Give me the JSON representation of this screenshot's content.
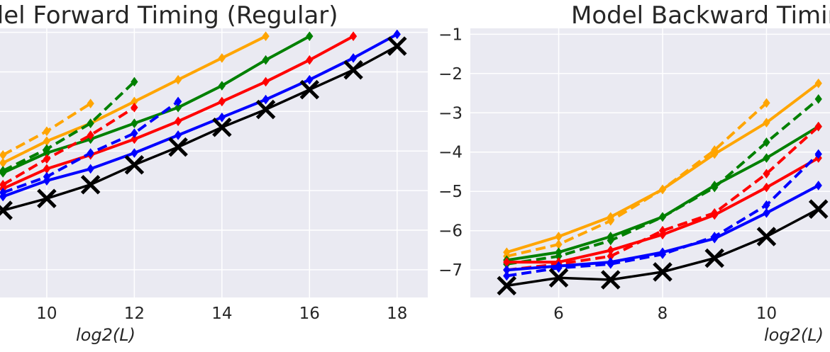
{
  "chart_data": [
    {
      "type": "line",
      "title": "Model Forward Timing (Regular)",
      "xlabel": "log2(L)",
      "xticks": [
        10,
        12,
        14,
        16,
        18
      ],
      "xlim": [
        8.9,
        18.7
      ],
      "ylim": [
        -7.7,
        -0.9
      ],
      "grid": true,
      "series": [
        {
          "color": "#ffa500",
          "style": "solid",
          "marker": "diamond",
          "x": [
            9,
            10,
            11,
            12,
            13,
            14,
            15
          ],
          "y": [
            -4.3,
            -3.75,
            -3.3,
            -2.75,
            -2.2,
            -1.65,
            -1.1
          ]
        },
        {
          "color": "#ffa500",
          "style": "dashed",
          "marker": "diamond",
          "x": [
            9,
            10,
            11
          ],
          "y": [
            -4.1,
            -3.5,
            -2.8
          ]
        },
        {
          "color": "#008000",
          "style": "solid",
          "marker": "diamond",
          "x": [
            9,
            10,
            11,
            12,
            13,
            14,
            15,
            16
          ],
          "y": [
            -4.55,
            -4.05,
            -3.7,
            -3.3,
            -2.9,
            -2.35,
            -1.7,
            -1.1
          ]
        },
        {
          "color": "#008000",
          "style": "dashed",
          "marker": "diamond",
          "x": [
            9,
            10,
            11,
            12
          ],
          "y": [
            -4.5,
            -3.95,
            -3.3,
            -2.25
          ]
        },
        {
          "color": "#ff0000",
          "style": "solid",
          "marker": "diamond",
          "x": [
            9,
            10,
            11,
            12,
            13,
            14,
            15,
            16,
            17
          ],
          "y": [
            -4.95,
            -4.45,
            -4.1,
            -3.7,
            -3.25,
            -2.75,
            -2.25,
            -1.7,
            -1.1
          ]
        },
        {
          "color": "#ff0000",
          "style": "dashed",
          "marker": "diamond",
          "x": [
            9,
            10,
            11,
            12
          ],
          "y": [
            -4.85,
            -4.2,
            -3.6,
            -2.9
          ]
        },
        {
          "color": "#0000ff",
          "style": "solid",
          "marker": "diamond",
          "x": [
            9,
            10,
            11,
            12,
            13,
            14,
            15,
            16,
            17,
            18
          ],
          "y": [
            -5.15,
            -4.75,
            -4.45,
            -4.05,
            -3.6,
            -3.15,
            -2.7,
            -2.2,
            -1.65,
            -1.05
          ]
        },
        {
          "color": "#0000ff",
          "style": "dashed",
          "marker": "diamond",
          "x": [
            9,
            10,
            11,
            12,
            13
          ],
          "y": [
            -5.05,
            -4.65,
            -4.05,
            -3.55,
            -2.75
          ]
        },
        {
          "color": "#000000",
          "style": "solid",
          "marker": "x",
          "x": [
            9,
            10,
            11,
            12,
            13,
            14,
            15,
            16,
            17,
            18
          ],
          "y": [
            -5.5,
            -5.2,
            -4.85,
            -4.35,
            -3.9,
            -3.4,
            -2.95,
            -2.45,
            -1.95,
            -1.35
          ]
        }
      ]
    },
    {
      "type": "line",
      "title": "Model Backward Timing",
      "xlabel": "log2(L)",
      "xticks": [
        6,
        8,
        10
      ],
      "yticks": [
        -1,
        -2,
        -3,
        -4,
        -5,
        -6,
        -7
      ],
      "xlim": [
        4.3,
        11.4
      ],
      "ylim": [
        -7.7,
        -0.85
      ],
      "grid": true,
      "series": [
        {
          "color": "#ffa500",
          "style": "solid",
          "marker": "diamond",
          "x": [
            5,
            6,
            7,
            8,
            9,
            10,
            11
          ],
          "y": [
            -6.55,
            -6.15,
            -5.65,
            -4.95,
            -4.05,
            -3.25,
            -2.25
          ]
        },
        {
          "color": "#ffa500",
          "style": "dashed",
          "marker": "diamond",
          "x": [
            5,
            6,
            7,
            8,
            9,
            10
          ],
          "y": [
            -6.65,
            -6.35,
            -5.75,
            -4.95,
            -3.95,
            -2.75
          ]
        },
        {
          "color": "#008000",
          "style": "solid",
          "marker": "diamond",
          "x": [
            5,
            6,
            7,
            8,
            9,
            10,
            11
          ],
          "y": [
            -6.75,
            -6.55,
            -6.15,
            -5.65,
            -4.85,
            -4.15,
            -3.35
          ]
        },
        {
          "color": "#008000",
          "style": "dashed",
          "marker": "diamond",
          "x": [
            5,
            6,
            7,
            8,
            9,
            10,
            11
          ],
          "y": [
            -6.85,
            -6.65,
            -6.25,
            -5.65,
            -4.9,
            -3.75,
            -2.65
          ]
        },
        {
          "color": "#ff0000",
          "style": "solid",
          "marker": "diamond",
          "x": [
            5,
            6,
            7,
            8,
            9,
            10,
            11
          ],
          "y": [
            -6.8,
            -6.8,
            -6.5,
            -6.1,
            -5.6,
            -4.9,
            -4.15
          ]
        },
        {
          "color": "#ff0000",
          "style": "dashed",
          "marker": "diamond",
          "x": [
            5,
            6,
            7,
            8,
            9,
            10,
            11
          ],
          "y": [
            -7.0,
            -6.85,
            -6.65,
            -6.0,
            -5.55,
            -4.55,
            -3.35
          ]
        },
        {
          "color": "#0000ff",
          "style": "solid",
          "marker": "diamond",
          "x": [
            5,
            6,
            7,
            8,
            9,
            10,
            11
          ],
          "y": [
            -7.0,
            -6.9,
            -6.8,
            -6.55,
            -6.2,
            -5.55,
            -4.85
          ]
        },
        {
          "color": "#0000ff",
          "style": "dashed",
          "marker": "diamond",
          "x": [
            5,
            6,
            7,
            8,
            9,
            10,
            11
          ],
          "y": [
            -7.15,
            -6.95,
            -6.85,
            -6.6,
            -6.15,
            -5.35,
            -4.05
          ]
        },
        {
          "color": "#000000",
          "style": "solid",
          "marker": "x",
          "x": [
            5,
            6,
            7,
            8,
            9,
            10,
            11
          ],
          "y": [
            -7.4,
            -7.2,
            -7.25,
            -7.05,
            -6.7,
            -6.15,
            -5.45
          ]
        }
      ]
    }
  ]
}
